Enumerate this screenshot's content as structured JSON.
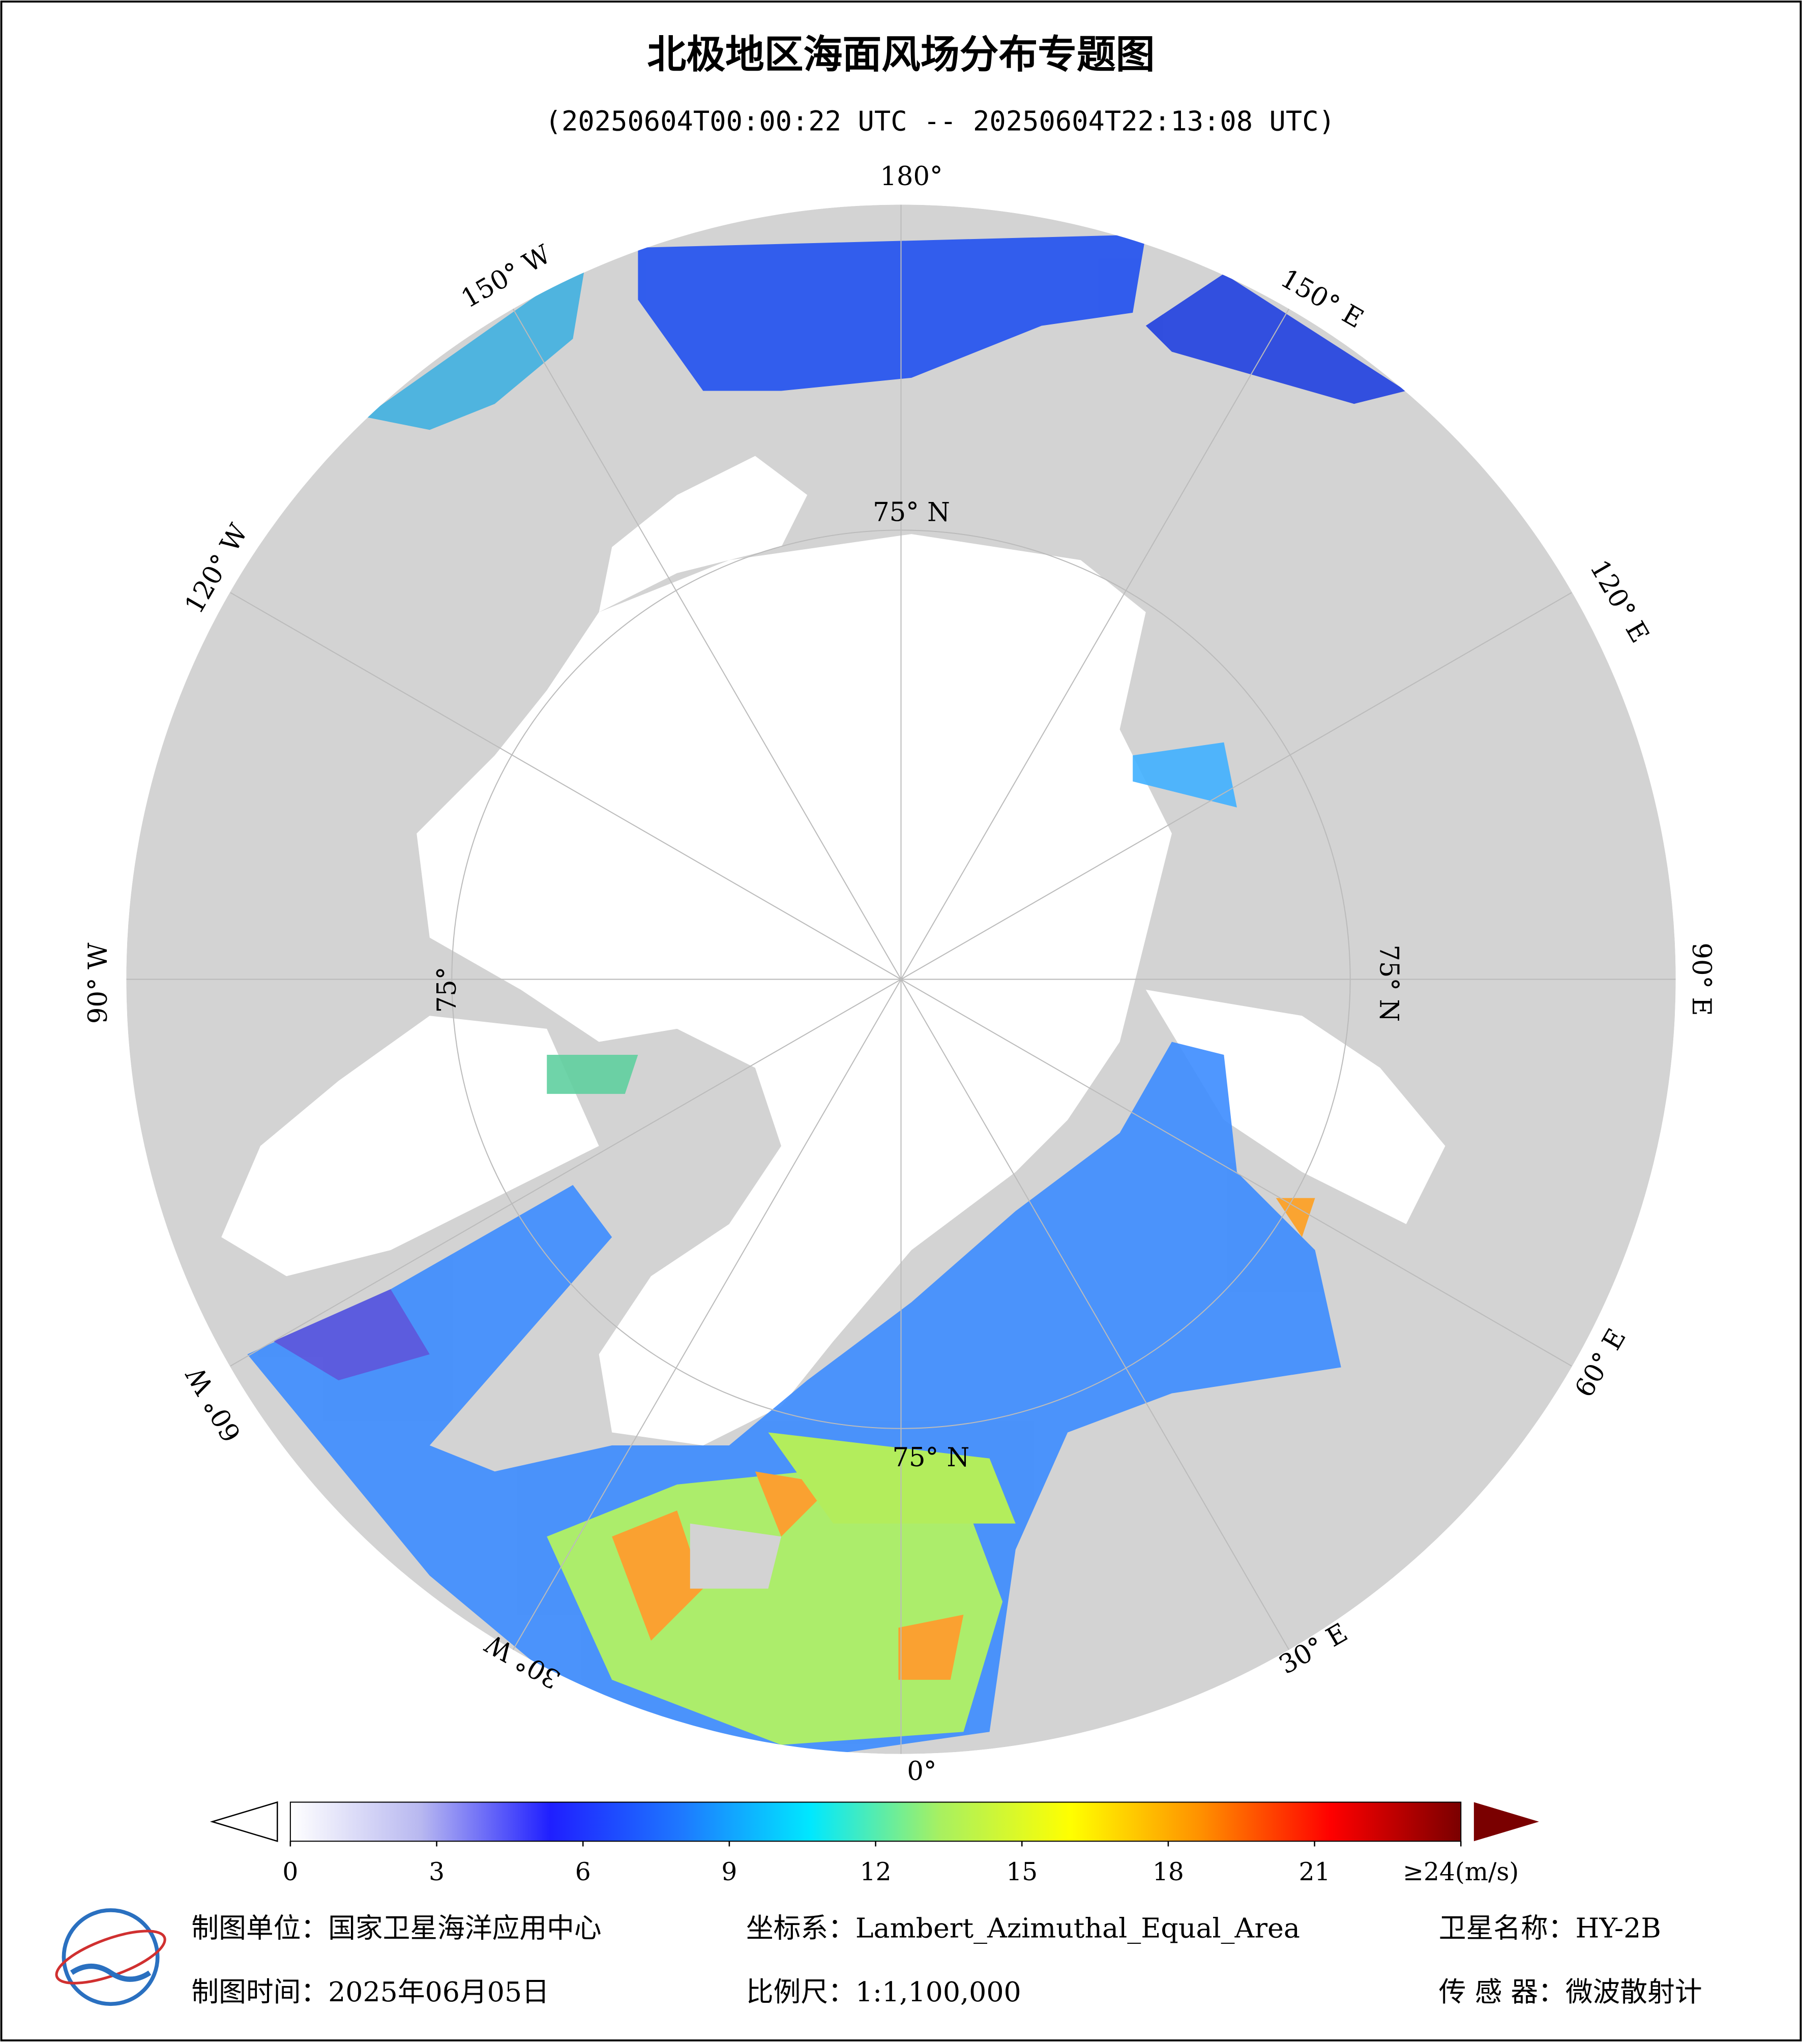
{
  "header": {
    "title": "北极地区海面风场分布专题图",
    "subtitle": "(20250604T00:00:22 UTC -- 20250604T22:13:08 UTC)"
  },
  "map": {
    "lon_labels": [
      "180°",
      "150° E",
      "120° E",
      "90° E",
      "60° E",
      "30° E",
      "0°",
      "30° W",
      "60° W",
      "90° W",
      "120° W",
      "150° W"
    ],
    "lat_labels": [
      "75° N",
      "75° N",
      "75° N",
      "75°"
    ]
  },
  "colorbar": {
    "range": [
      0,
      24
    ],
    "colors": [
      "#ffffff",
      "#b8b8f0",
      "#1f1fff",
      "#1e78ff",
      "#00e8ff",
      "#a8f060",
      "#ffff00",
      "#ff9000",
      "#ff0000",
      "#7a0000"
    ],
    "ticks": [
      0,
      3,
      6,
      9,
      12,
      15,
      18,
      21,
      {
        "value": 24,
        "label": "≥24(m/s)"
      }
    ]
  },
  "footer": {
    "unit": "制图单位：国家卫星海洋应用中心",
    "crs": "坐标系：Lambert_Azimuthal_Equal_Area",
    "satellite": "卫星名称：HY-2B",
    "date": "制图时间：2025年06月05日",
    "scale": "比例尺：1:1,100,000",
    "sensor": "传 感 器：微波散射计"
  }
}
